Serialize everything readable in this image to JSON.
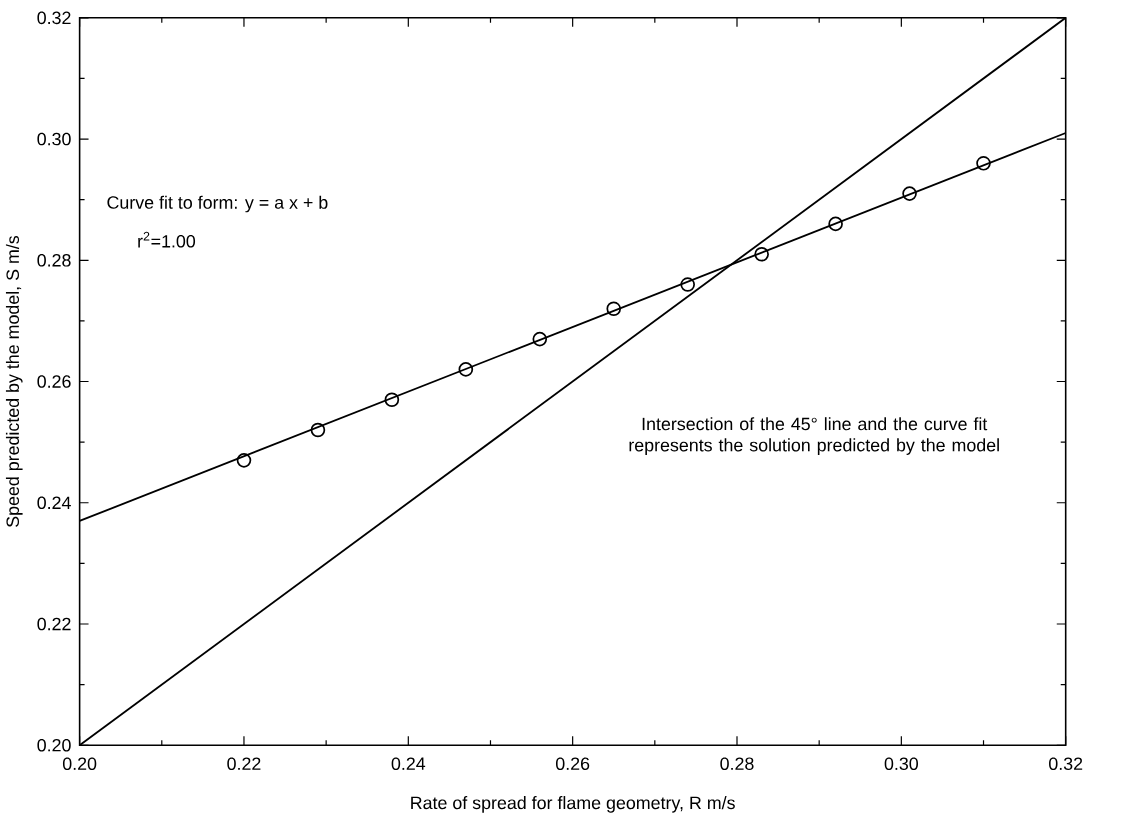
{
  "chart_data": {
    "type": "scatter",
    "xlabel": "Rate of spread for flame geometry, R  m/s",
    "ylabel": "Speed predicted by the model, S  m/s",
    "xlim": [
      0.2,
      0.32
    ],
    "ylim": [
      0.2,
      0.32
    ],
    "xticks": [
      {
        "value": 0.2,
        "label": "0.20"
      },
      {
        "value": 0.22,
        "label": "0.22"
      },
      {
        "value": 0.24,
        "label": "0.24"
      },
      {
        "value": 0.26,
        "label": "0.26"
      },
      {
        "value": 0.28,
        "label": "0.28"
      },
      {
        "value": 0.3,
        "label": "0.30"
      },
      {
        "value": 0.32,
        "label": "0.32"
      }
    ],
    "yticks": [
      {
        "value": 0.2,
        "label": "0.20"
      },
      {
        "value": 0.22,
        "label": "0.22"
      },
      {
        "value": 0.24,
        "label": "0.24"
      },
      {
        "value": 0.26,
        "label": "0.26"
      },
      {
        "value": 0.28,
        "label": "0.28"
      },
      {
        "value": 0.3,
        "label": "0.30"
      },
      {
        "value": 0.32,
        "label": "0.32"
      }
    ],
    "grid": false,
    "series": [
      {
        "marker": "circle",
        "color": "#000000",
        "x": [
          0.22,
          0.229,
          0.238,
          0.247,
          0.256,
          0.265,
          0.274,
          0.283,
          0.292,
          0.301,
          0.31
        ],
        "values": [
          0.247,
          0.252,
          0.257,
          0.262,
          0.267,
          0.272,
          0.276,
          0.281,
          0.286,
          0.291,
          0.296
        ]
      },
      {
        "type": "line",
        "marker": "none",
        "color": "#000000",
        "x": [
          0.2,
          0.32
        ],
        "values": [
          0.237,
          0.301
        ]
      },
      {
        "type": "line",
        "marker": "none",
        "color": "#000000",
        "x": [
          0.2,
          0.32
        ],
        "values": [
          0.2,
          0.32
        ]
      }
    ],
    "annotations": [
      "Curve fit to form:  y = a x + b",
      "r$^{2}$=1.00",
      "Intersection of the 45° line and the curve fit represents the solution predicted by the model"
    ]
  }
}
